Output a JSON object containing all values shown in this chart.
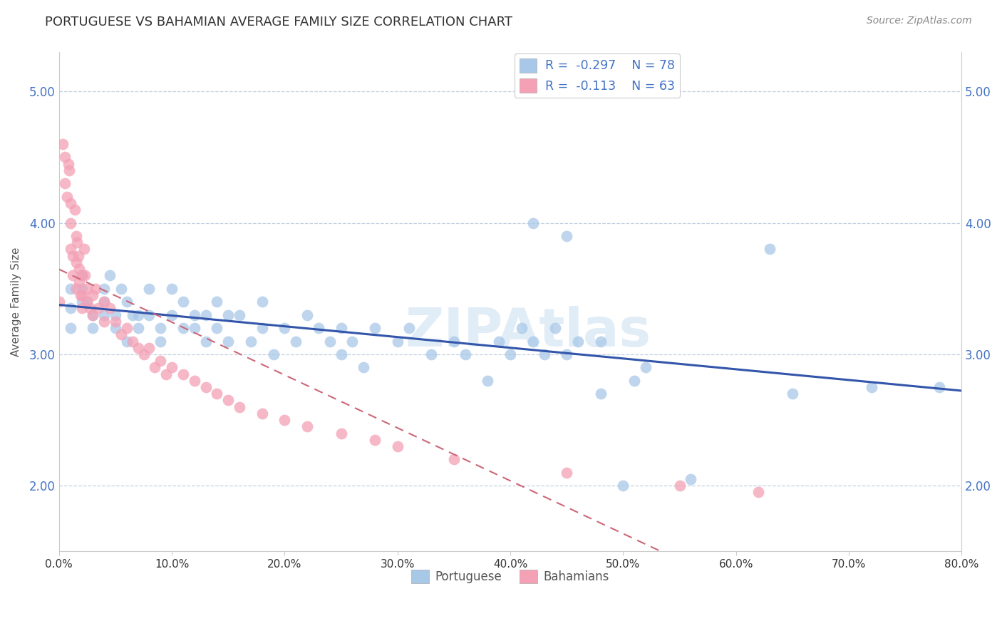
{
  "title": "PORTUGUESE VS BAHAMIAN AVERAGE FAMILY SIZE CORRELATION CHART",
  "source": "Source: ZipAtlas.com",
  "ylabel": "Average Family Size",
  "xlim": [
    0.0,
    0.8
  ],
  "ylim": [
    1.5,
    5.3
  ],
  "yticks": [
    2.0,
    3.0,
    4.0,
    5.0
  ],
  "xticks": [
    0.0,
    0.1,
    0.2,
    0.3,
    0.4,
    0.5,
    0.6,
    0.7,
    0.8
  ],
  "xtick_labels": [
    "0.0%",
    "10.0%",
    "20.0%",
    "30.0%",
    "40.0%",
    "50.0%",
    "60.0%",
    "70.0%",
    "80.0%"
  ],
  "portuguese_color": "#a8c8e8",
  "bahamian_color": "#f4a0b5",
  "trendline_portuguese_color": "#3355aa",
  "trendline_bahamian_color": "#cc6677",
  "portuguese_x": [
    0.01,
    0.01,
    0.01,
    0.02,
    0.02,
    0.02,
    0.025,
    0.03,
    0.03,
    0.04,
    0.04,
    0.04,
    0.045,
    0.05,
    0.05,
    0.055,
    0.06,
    0.06,
    0.065,
    0.07,
    0.07,
    0.08,
    0.08,
    0.09,
    0.09,
    0.1,
    0.1,
    0.11,
    0.11,
    0.12,
    0.12,
    0.13,
    0.13,
    0.14,
    0.14,
    0.15,
    0.15,
    0.16,
    0.17,
    0.18,
    0.18,
    0.19,
    0.2,
    0.21,
    0.22,
    0.23,
    0.24,
    0.25,
    0.25,
    0.26,
    0.27,
    0.28,
    0.3,
    0.31,
    0.33,
    0.35,
    0.36,
    0.38,
    0.39,
    0.4,
    0.41,
    0.42,
    0.43,
    0.44,
    0.45,
    0.46,
    0.48,
    0.5,
    0.51,
    0.42,
    0.45,
    0.48,
    0.52,
    0.56,
    0.63,
    0.65,
    0.72,
    0.78
  ],
  "portuguese_y": [
    3.35,
    3.5,
    3.2,
    3.4,
    3.5,
    3.6,
    3.4,
    3.3,
    3.2,
    3.5,
    3.3,
    3.4,
    3.6,
    3.2,
    3.3,
    3.5,
    3.1,
    3.4,
    3.3,
    3.3,
    3.2,
    3.5,
    3.3,
    3.2,
    3.1,
    3.5,
    3.3,
    3.2,
    3.4,
    3.3,
    3.2,
    3.1,
    3.3,
    3.4,
    3.2,
    3.3,
    3.1,
    3.3,
    3.1,
    3.4,
    3.2,
    3.0,
    3.2,
    3.1,
    3.3,
    3.2,
    3.1,
    3.2,
    3.0,
    3.1,
    2.9,
    3.2,
    3.1,
    3.2,
    3.0,
    3.1,
    3.0,
    2.8,
    3.1,
    3.0,
    3.2,
    3.1,
    3.0,
    3.2,
    3.0,
    3.1,
    2.7,
    2.0,
    2.8,
    4.0,
    3.9,
    3.1,
    2.9,
    2.05,
    3.8,
    2.7,
    2.75,
    2.75
  ],
  "bahamian_x": [
    0.0,
    0.003,
    0.005,
    0.005,
    0.007,
    0.008,
    0.009,
    0.01,
    0.01,
    0.01,
    0.012,
    0.012,
    0.014,
    0.015,
    0.015,
    0.015,
    0.016,
    0.017,
    0.018,
    0.018,
    0.019,
    0.02,
    0.02,
    0.02,
    0.022,
    0.023,
    0.025,
    0.025,
    0.027,
    0.03,
    0.03,
    0.032,
    0.035,
    0.04,
    0.04,
    0.045,
    0.05,
    0.055,
    0.06,
    0.065,
    0.07,
    0.075,
    0.08,
    0.085,
    0.09,
    0.095,
    0.1,
    0.11,
    0.12,
    0.13,
    0.14,
    0.15,
    0.16,
    0.18,
    0.2,
    0.22,
    0.25,
    0.28,
    0.3,
    0.35,
    0.45,
    0.55,
    0.62
  ],
  "bahamian_y": [
    3.4,
    4.6,
    4.5,
    4.3,
    4.2,
    4.45,
    4.4,
    4.15,
    4.0,
    3.8,
    3.75,
    3.6,
    4.1,
    3.9,
    3.7,
    3.5,
    3.85,
    3.75,
    3.65,
    3.55,
    3.45,
    3.6,
    3.45,
    3.35,
    3.8,
    3.6,
    3.5,
    3.4,
    3.35,
    3.45,
    3.3,
    3.5,
    3.35,
    3.4,
    3.25,
    3.35,
    3.25,
    3.15,
    3.2,
    3.1,
    3.05,
    3.0,
    3.05,
    2.9,
    2.95,
    2.85,
    2.9,
    2.85,
    2.8,
    2.75,
    2.7,
    2.65,
    2.6,
    2.55,
    2.5,
    2.45,
    2.4,
    2.35,
    2.3,
    2.2,
    2.1,
    2.0,
    1.95
  ]
}
